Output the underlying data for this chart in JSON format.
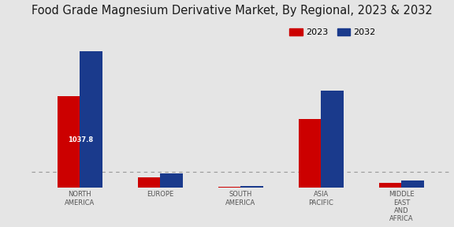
{
  "title": "Food Grade Magnesium Derivative Market, By Regional, 2023 & 2032",
  "categories": [
    "NORTH\nAMERICA",
    "EUROPE",
    "SOUTH\nAMERICA",
    "ASIA\nPACIFIC",
    "MIDDLE\nEAST\nAND\nAFRICA"
  ],
  "values_2023": [
    1037.8,
    120,
    12,
    780,
    55
  ],
  "values_2032": [
    1550,
    160,
    15,
    1100,
    80
  ],
  "color_2023": "#cc0000",
  "color_2032": "#1a3a8c",
  "bar_width": 0.28,
  "annotation_text": "1037.8",
  "background_color": "#e5e5e5",
  "title_fontsize": 10.5,
  "label_fontsize": 6,
  "legend_fontsize": 8,
  "ylim": [
    0,
    1900
  ]
}
